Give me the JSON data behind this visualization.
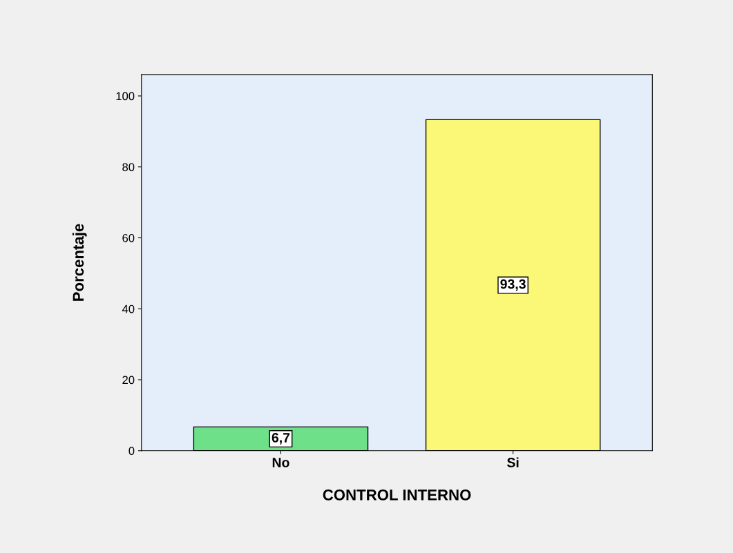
{
  "chart_data": {
    "type": "bar",
    "xlabel": "CONTROL INTERNO",
    "ylabel": "Porcentaje",
    "categories": [
      "No",
      "Si"
    ],
    "values": [
      6.7,
      93.3
    ],
    "colors": [
      "#6ee08a",
      "#fbf877"
    ],
    "value_labels": [
      "6,7",
      "93,3"
    ],
    "ylim": [
      0,
      106
    ],
    "yticks": [
      0,
      20,
      40,
      60,
      80,
      100
    ],
    "grid": false,
    "legend": false
  }
}
